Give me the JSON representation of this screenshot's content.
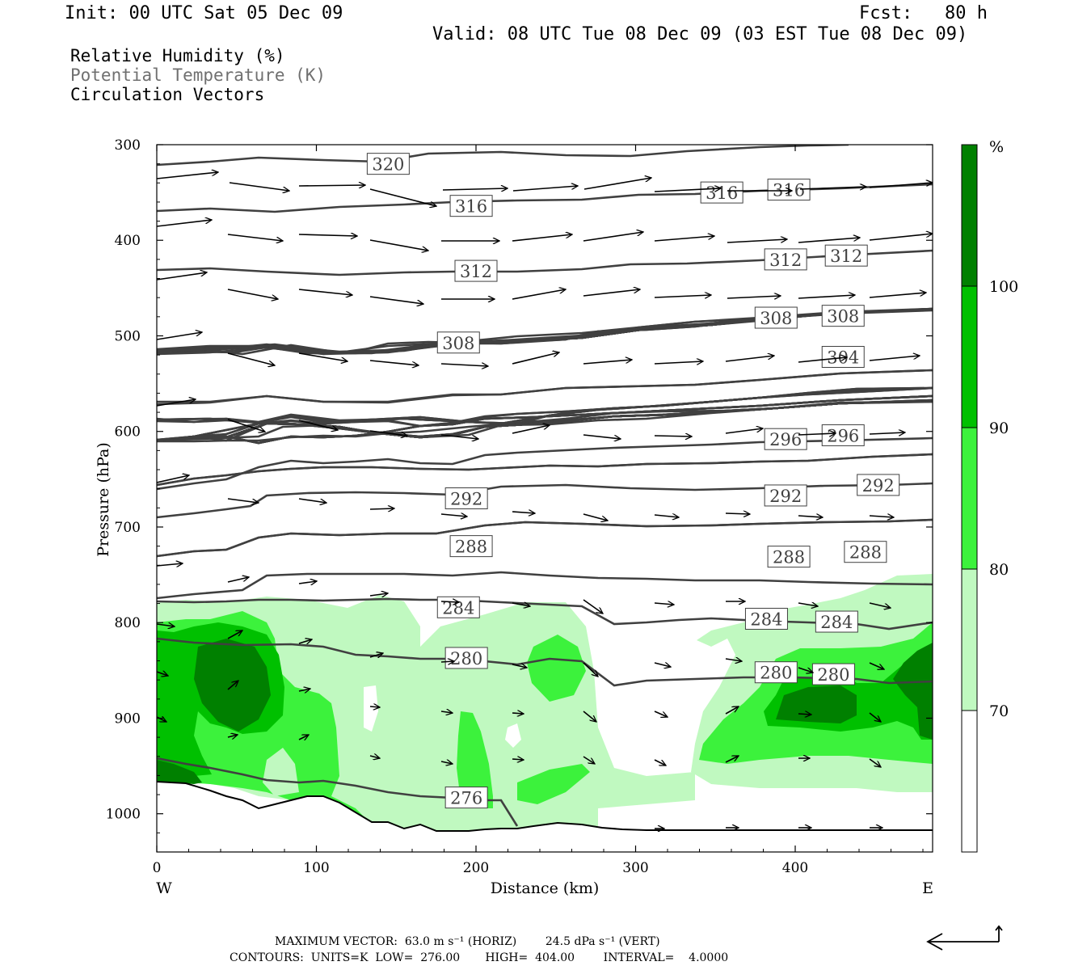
{
  "header": {
    "init": "Init: 00 UTC Sat 05 Dec 09",
    "fcst": "Fcst:   80 h",
    "valid": "Valid: 08 UTC Tue 08 Dec 09 (03 EST Tue 08 Dec 09)"
  },
  "legend": {
    "rh": "Relative Humidity (%)",
    "theta": "Potential Temperature (K)",
    "vectors": "Circulation Vectors"
  },
  "footer": {
    "max_vector": "MAXIMUM VECTOR:  63.0 m s⁻¹ (HORIZ)        24.5 dPa s⁻¹ (VERT)",
    "contours": "CONTOURS:  UNITS=K  LOW=  276.00       HIGH=  404.00        INTERVAL=    4.0000"
  },
  "colors": {
    "rh_70": "#c0f9c0",
    "rh_80": "#3cf23c",
    "rh_90": "#00c000",
    "rh_100": "#008000",
    "contour": "#404040"
  },
  "chart_data": {
    "type": "contour",
    "xlabel": "Distance (km)",
    "ylabel": "Pressure (hPa)",
    "xlim": [
      0,
      485
    ],
    "ylim": [
      1040,
      300
    ],
    "x_ticks": [
      "0",
      "100",
      "200",
      "300",
      "400"
    ],
    "y_ticks": [
      "300",
      "400",
      "500",
      "600",
      "700",
      "800",
      "900",
      "1000"
    ],
    "x_end_labels": {
      "left": "W",
      "right": "E"
    },
    "colorbar": {
      "unit": "%",
      "levels": [
        "70",
        "80",
        "90",
        "100"
      ],
      "fills": [
        "#ffffff",
        "#c0f9c0",
        "#3cf23c",
        "#00c000",
        "#008000"
      ]
    },
    "theta_contour_labels": [
      {
        "label": "320",
        "x": 145,
        "p": 320
      },
      {
        "label": "316",
        "x": 197,
        "p": 364
      },
      {
        "label": "316",
        "x": 354,
        "p": 350
      },
      {
        "label": "316",
        "x": 396,
        "p": 347
      },
      {
        "label": "312",
        "x": 200,
        "p": 432
      },
      {
        "label": "312",
        "x": 394,
        "p": 420
      },
      {
        "label": "312",
        "x": 432,
        "p": 416
      },
      {
        "label": "308",
        "x": 189,
        "p": 507
      },
      {
        "label": "308",
        "x": 388,
        "p": 481
      },
      {
        "label": "308",
        "x": 430,
        "p": 479
      },
      {
        "label": "304",
        "x": 430,
        "p": 522
      },
      {
        "label": "296",
        "x": 394,
        "p": 608
      },
      {
        "label": "296",
        "x": 430,
        "p": 604
      },
      {
        "label": "292",
        "x": 194,
        "p": 670
      },
      {
        "label": "292",
        "x": 394,
        "p": 667
      },
      {
        "label": "292",
        "x": 452,
        "p": 656
      },
      {
        "label": "288",
        "x": 197,
        "p": 720
      },
      {
        "label": "288",
        "x": 396,
        "p": 731
      },
      {
        "label": "288",
        "x": 444,
        "p": 726
      },
      {
        "label": "284",
        "x": 189,
        "p": 784
      },
      {
        "label": "284",
        "x": 382,
        "p": 796
      },
      {
        "label": "284",
        "x": 426,
        "p": 799
      },
      {
        "label": "280",
        "x": 194,
        "p": 837
      },
      {
        "label": "280",
        "x": 388,
        "p": 852
      },
      {
        "label": "280",
        "x": 424,
        "p": 854
      },
      {
        "label": "276",
        "x": 194,
        "p": 983
      }
    ]
  }
}
